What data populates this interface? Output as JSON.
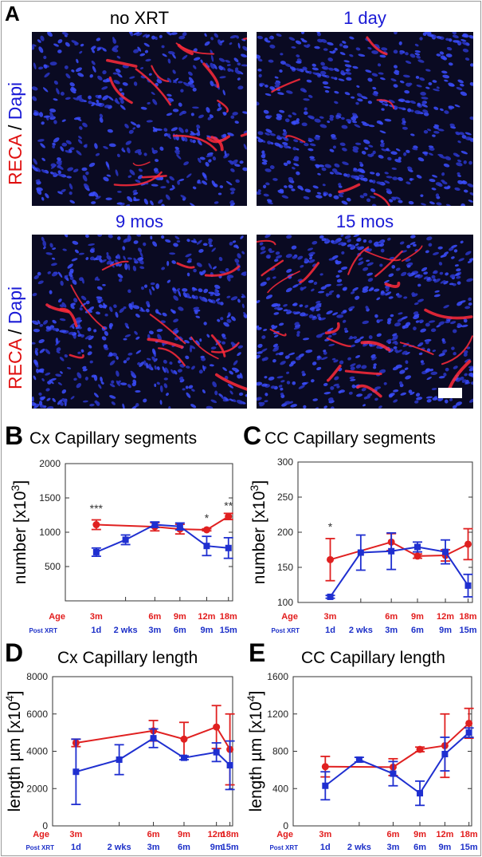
{
  "figure": {
    "panels": {
      "a": "A",
      "b": "B",
      "c": "C",
      "d": "D",
      "e": "E"
    },
    "micrographs": [
      {
        "title": "no XRT",
        "title_color": "#000000"
      },
      {
        "title": "1 day",
        "title_color": "#1a1ad6"
      },
      {
        "title": "9 mos",
        "title_color": "#1a1ad6"
      },
      {
        "title": "15 mos",
        "title_color": "#1a1ad6"
      }
    ],
    "stain_label": {
      "part1": "RECA",
      "sep": " / ",
      "part2": "Dapi",
      "color1": "#e01010",
      "color2": "#1a1ad6"
    },
    "colors": {
      "age": "#e21b1b",
      "post_xrt": "#1c2fc8",
      "red_series": "#e02020",
      "blue_series": "#1f2fd0"
    },
    "axis_rows": {
      "age_label": "Age",
      "post_label": "Post XRT",
      "age_ticks": [
        "3m",
        "6m",
        "9m",
        "12m",
        "18m"
      ],
      "post_ticks": [
        "1d",
        "2 wks",
        "3m",
        "6m",
        "9m",
        "15m"
      ]
    }
  },
  "chart_data": [
    {
      "id": "B",
      "type": "line",
      "title": "Cx Capillary segments",
      "ylabel": "number [x10",
      "ylabel_exp": "3",
      "ylabel_end": "]",
      "ylim": [
        0,
        2000
      ],
      "yticks": [
        0,
        500,
        1000,
        1500,
        2000
      ],
      "ytick_labels": [
        "",
        "500",
        "1000",
        "1500",
        "2000"
      ],
      "series": [
        {
          "color": "red",
          "marker": "circle",
          "points": [
            {
              "x": 0,
              "y": 1110,
              "err": 70
            },
            {
              "x": 2,
              "y": 1080,
              "err": 60
            },
            {
              "x": 3,
              "y": 1045,
              "err": 70
            },
            {
              "x": 4,
              "y": 1035,
              "err": 15
            },
            {
              "x": 5,
              "y": 1230,
              "err": 45
            }
          ]
        },
        {
          "color": "blue",
          "marker": "square",
          "points": [
            {
              "x": 0,
              "y": 710,
              "err": 60
            },
            {
              "x": 1,
              "y": 890,
              "err": 70
            },
            {
              "x": 2,
              "y": 1110,
              "err": 40
            },
            {
              "x": 3,
              "y": 1085,
              "err": 50
            },
            {
              "x": 4,
              "y": 800,
              "err": 140
            },
            {
              "x": 5,
              "y": 770,
              "err": 150
            }
          ]
        }
      ],
      "annotations": [
        {
          "x": 0,
          "y": 1290,
          "text": "***"
        },
        {
          "x": 4,
          "y": 1150,
          "text": "*"
        },
        {
          "x": 5,
          "y": 1330,
          "text": "**"
        }
      ]
    },
    {
      "id": "C",
      "type": "line",
      "title": "CC Capillary segments",
      "ylabel": "number [x10",
      "ylabel_exp": "3",
      "ylabel_end": "]",
      "ylim": [
        100,
        300
      ],
      "yticks": [
        100,
        150,
        200,
        250,
        300
      ],
      "ytick_labels": [
        "100",
        "150",
        "200",
        "250",
        "300"
      ],
      "series": [
        {
          "color": "red",
          "marker": "circle",
          "points": [
            {
              "x": 0,
              "y": 161,
              "err": 30
            },
            {
              "x": 2,
              "y": 186,
              "err": 12
            },
            {
              "x": 3,
              "y": 166,
              "err": 3
            },
            {
              "x": 4,
              "y": 167,
              "err": 8
            },
            {
              "x": 5,
              "y": 183,
              "err": 22
            }
          ]
        },
        {
          "color": "blue",
          "marker": "square",
          "points": [
            {
              "x": 0,
              "y": 108,
              "err": 2
            },
            {
              "x": 1,
              "y": 171,
              "err": 25
            },
            {
              "x": 2,
              "y": 173,
              "err": 26
            },
            {
              "x": 3,
              "y": 179,
              "err": 7
            },
            {
              "x": 4,
              "y": 172,
              "err": 17
            },
            {
              "x": 5,
              "y": 124,
              "err": 16
            }
          ]
        }
      ],
      "annotations": [
        {
          "x": 0,
          "y": 202,
          "text": "*"
        }
      ]
    },
    {
      "id": "D",
      "type": "line",
      "title": "Cx Capillary length",
      "ylabel": "length µm [x10",
      "ylabel_exp": "4",
      "ylabel_end": "]",
      "ylim": [
        0,
        8000
      ],
      "yticks": [
        0,
        2000,
        4000,
        6000,
        8000
      ],
      "ytick_labels": [
        "0",
        "2000",
        "4000",
        "6000",
        "8000"
      ],
      "series": [
        {
          "color": "red",
          "marker": "circle",
          "points": [
            {
              "x": 0,
              "y": 4450,
              "err": 200
            },
            {
              "x": 2,
              "y": 5100,
              "err": 550
            },
            {
              "x": 3,
              "y": 4650,
              "err": 900
            },
            {
              "x": 4,
              "y": 5300,
              "err": 1150
            },
            {
              "x": 5,
              "y": 4100,
              "err": 1900
            }
          ]
        },
        {
          "color": "blue",
          "marker": "square",
          "points": [
            {
              "x": 0,
              "y": 2900,
              "err": 1750
            },
            {
              "x": 1,
              "y": 3550,
              "err": 800
            },
            {
              "x": 2,
              "y": 4700,
              "err": 500
            },
            {
              "x": 3,
              "y": 3650,
              "err": 100
            },
            {
              "x": 4,
              "y": 3950,
              "err": 500
            },
            {
              "x": 5,
              "y": 3250,
              "err": 1300
            }
          ]
        }
      ],
      "annotations": []
    },
    {
      "id": "E",
      "type": "line",
      "title": "CC Capillary length",
      "ylabel": "length µm [x10",
      "ylabel_exp": "4",
      "ylabel_end": "]",
      "ylim": [
        0,
        1600
      ],
      "yticks": [
        0,
        400,
        800,
        1200,
        1600
      ],
      "ytick_labels": [
        "0",
        "400",
        "800",
        "1200",
        "1600"
      ],
      "series": [
        {
          "color": "red",
          "marker": "circle",
          "points": [
            {
              "x": 0,
              "y": 635,
              "err": 110
            },
            {
              "x": 2,
              "y": 630,
              "err": 90
            },
            {
              "x": 3,
              "y": 820,
              "err": 25
            },
            {
              "x": 4,
              "y": 860,
              "err": 340
            },
            {
              "x": 5,
              "y": 1100,
              "err": 160
            }
          ]
        },
        {
          "color": "blue",
          "marker": "square",
          "points": [
            {
              "x": 0,
              "y": 430,
              "err": 150
            },
            {
              "x": 1,
              "y": 710,
              "err": 25
            },
            {
              "x": 2,
              "y": 560,
              "err": 130
            },
            {
              "x": 3,
              "y": 350,
              "err": 130
            },
            {
              "x": 4,
              "y": 770,
              "err": 180
            },
            {
              "x": 5,
              "y": 1000,
              "err": 50
            }
          ]
        }
      ],
      "annotations": []
    }
  ]
}
